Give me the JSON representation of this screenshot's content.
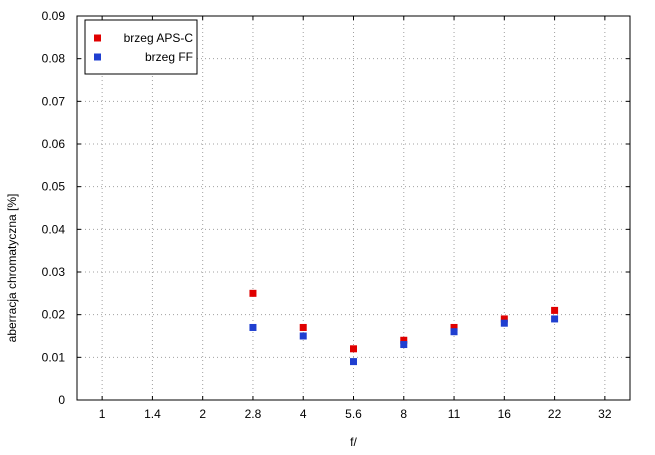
{
  "chart_data": {
    "type": "scatter",
    "xlabel": "f/",
    "ylabel": "aberracja chromatyczna [%]",
    "categories": [
      "1",
      "1.4",
      "2",
      "2.8",
      "4",
      "5.6",
      "8",
      "11",
      "16",
      "22",
      "32"
    ],
    "ylim": [
      0,
      0.09
    ],
    "yticks": [
      "0",
      "0.01",
      "0.02",
      "0.03",
      "0.04",
      "0.05",
      "0.06",
      "0.07",
      "0.08",
      "0.09"
    ],
    "grid": true,
    "legend_position": "top-left",
    "series": [
      {
        "name": "brzeg APS-C",
        "color": "#e00000",
        "x": [
          "2.8",
          "4",
          "5.6",
          "8",
          "11",
          "16",
          "22"
        ],
        "values": [
          0.025,
          0.017,
          0.012,
          0.014,
          0.017,
          0.019,
          0.021
        ]
      },
      {
        "name": "brzeg FF",
        "color": "#1f3fd0",
        "x": [
          "2.8",
          "4",
          "5.6",
          "8",
          "11",
          "16",
          "22"
        ],
        "values": [
          0.017,
          0.015,
          0.009,
          0.013,
          0.016,
          0.018,
          0.019
        ]
      }
    ]
  }
}
